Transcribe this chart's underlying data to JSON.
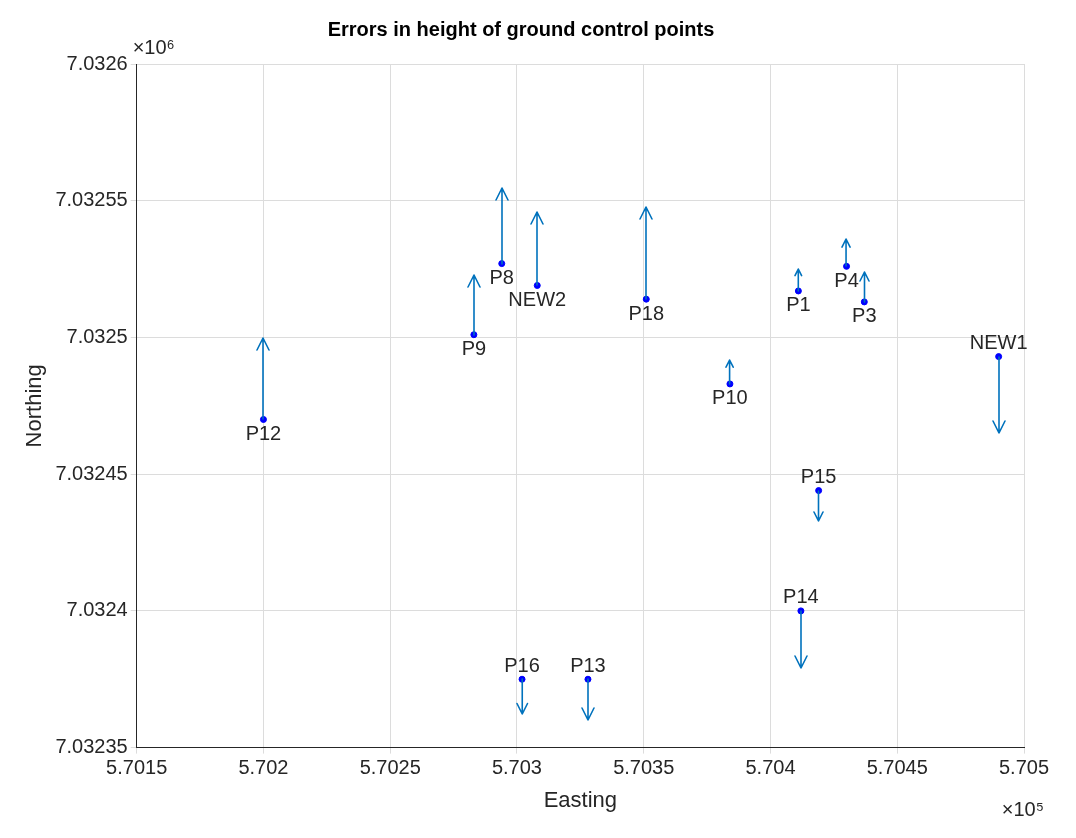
{
  "chart_data": {
    "type": "scatter",
    "title": "Errors in height of ground control points",
    "xlabel": "Easting",
    "ylabel": "Northing",
    "xlim": [
      5.7015,
      5.705
    ],
    "ylim": [
      7.03235,
      7.0326
    ],
    "xticks": [
      5.7015,
      5.702,
      5.7025,
      5.703,
      5.7035,
      5.704,
      5.7045,
      5.705
    ],
    "yticks": [
      7.03235,
      7.0324,
      7.03245,
      7.0325,
      7.03255,
      7.0326
    ],
    "grid": true,
    "legend": false,
    "marker": "circle",
    "series": [
      {
        "color": "#0000ff",
        "x": [
          5.702,
          5.70283,
          5.70294,
          5.70308,
          5.70351,
          5.70384,
          5.70411,
          5.7043,
          5.70437,
          5.7049,
          5.70419,
          5.70412,
          5.70302,
          5.70328
        ],
        "values": [
          7.03247,
          7.032501,
          7.032527,
          7.032519,
          7.032514,
          7.032483,
          7.032517,
          7.032526,
          7.032513,
          7.032493,
          7.032444,
          7.0324,
          7.032375,
          7.032375
        ]
      }
    ],
    "annotations": [
      "×10⁶",
      "×10⁵",
      {
        "text": "P12",
        "x": 5.702,
        "y": 7.03247
      },
      {
        "text": "P9",
        "x": 5.70283,
        "y": 7.032501
      },
      {
        "text": "P8",
        "x": 5.70294,
        "y": 7.032527
      },
      {
        "text": "NEW2",
        "x": 5.70308,
        "y": 7.032519
      },
      {
        "text": "P18",
        "x": 5.70351,
        "y": 7.032514
      },
      {
        "text": "P10",
        "x": 5.70384,
        "y": 7.032483
      },
      {
        "text": "P1",
        "x": 5.70411,
        "y": 7.032517
      },
      {
        "text": "P4",
        "x": 5.7043,
        "y": 7.032526
      },
      {
        "text": "P3",
        "x": 5.70437,
        "y": 7.032513
      },
      {
        "text": "NEW1",
        "x": 5.7049,
        "y": 7.032493
      },
      {
        "text": "P15",
        "x": 5.70419,
        "y": 7.032444
      },
      {
        "text": "P14",
        "x": 5.70412,
        "y": 7.0324
      },
      {
        "text": "P16",
        "x": 5.70302,
        "y": 7.032375
      },
      {
        "text": "P13",
        "x": 5.70328,
        "y": 7.032375
      }
    ]
  }
}
